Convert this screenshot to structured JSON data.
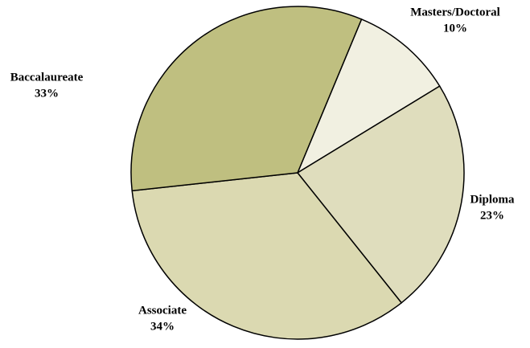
{
  "chart_data": {
    "type": "pie",
    "categories": [
      "Masters/Doctoral",
      "Diploma",
      "Associate",
      "Baccalaureate"
    ],
    "values": [
      10,
      23,
      34,
      33
    ],
    "value_labels": [
      "10%",
      "23%",
      "34%",
      "33%"
    ],
    "colors": [
      "#f1f0e1",
      "#dfddbd",
      "#dbd9b1",
      "#bfbf80"
    ]
  }
}
